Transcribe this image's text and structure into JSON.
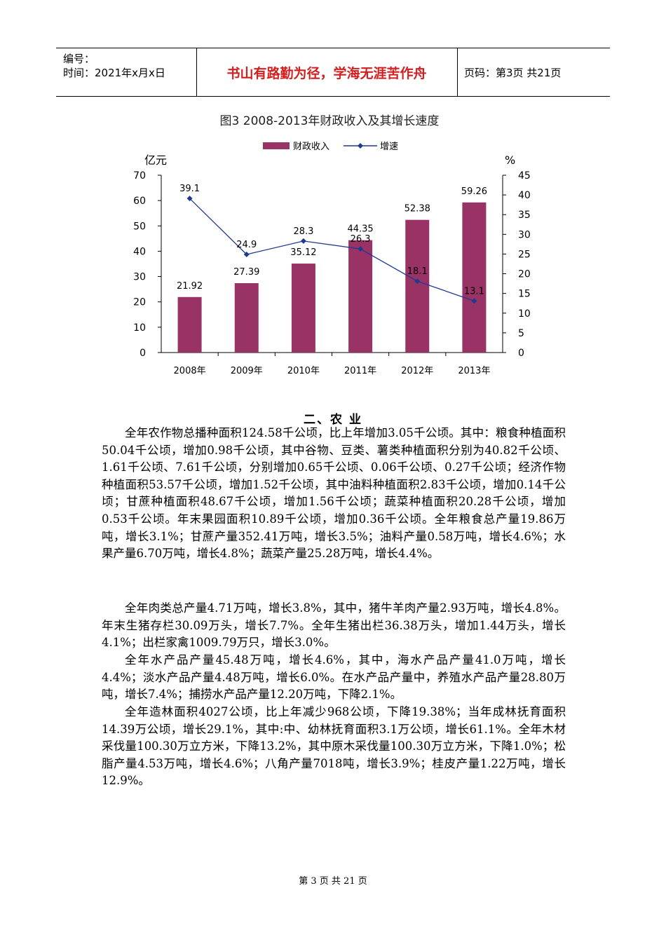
{
  "header": {
    "number_label": "编号：",
    "time_label": "时间：2021年x月x日",
    "motto": "书山有路勤为径，学海无涯苦作舟",
    "page_label": "页码：第3页  共21页"
  },
  "chart_data": {
    "type": "bar",
    "title": "图3   2008-2013年财政收入及其增长速度",
    "categories": [
      "2008年",
      "2009年",
      "2010年",
      "2011年",
      "2012年",
      "2013年"
    ],
    "series": [
      {
        "name": "财政收入",
        "type": "bar",
        "axis": "left",
        "color": "#993366",
        "values": [
          21.92,
          27.39,
          35.12,
          44.35,
          52.38,
          59.26
        ]
      },
      {
        "name": "增速",
        "type": "line",
        "axis": "right",
        "color": "#1f3a8f",
        "values": [
          39.1,
          24.9,
          28.3,
          26.3,
          18.1,
          13.1
        ]
      }
    ],
    "ylabel_left": "亿元",
    "ylabel_right": "%",
    "ylim_left": [
      0,
      70
    ],
    "ylim_right": [
      0,
      45
    ],
    "yticks_left": [
      "0",
      "10",
      "20",
      "30",
      "40",
      "50",
      "60",
      "70"
    ],
    "yticks_right": [
      "0",
      "5",
      "10",
      "15",
      "20",
      "25",
      "30",
      "35",
      "40",
      "45"
    ],
    "bar_labels": [
      "21.92",
      "27.39",
      "35.12",
      "44.35",
      "52.38",
      "59.26"
    ],
    "line_labels": [
      "39.1",
      "24.9",
      "28.3",
      "26.3",
      "18.1",
      "13.1"
    ],
    "legend_position": "top",
    "grid": false
  },
  "section": {
    "title": "二、农    业"
  },
  "paragraphs": [
    "全年农作物总播种面积124.58千公顷，比上年增加3.05千公顷。其中：粮食种植面积50.04千公顷，增加0.98千公顷，其中谷物、豆类、薯类种植面积分别为40.82千公顷、1.61千公顷、7.61千公顷，分别增加0.65千公顷、0.06千公顷、0.27千公顷；经济作物种植面积53.57千公顷，增加1.52千公顷，其中油料种植面积2.83千公顷，增加0.14千公顷；甘蔗种植面积48.67千公顷，增加1.56千公顷；蔬菜种植面积20.28千公顷，增加0.53千公顷。年末果园面积10.89千公顷，增加0.36千公顷。全年粮食总产量19.86万吨，增长3.1%；甘蔗产量352.41万吨，增长3.5%；油料产量0.58万吨，增长4.6%；水果产量6.70万吨，增长4.8%；蔬菜产量25.28万吨，增长4.4%。",
    "全年肉类总产量4.71万吨，增长3.8%，其中，猪牛羊肉产量2.93万吨，增长4.8%。年末生猪存栏30.09万头，增长7.7%。全年生猪出栏36.38万头，增加1.44万头，增长4.1%；出栏家禽1009.79万只，增长3.0%。",
    "全年水产品产量45.48万吨，增长4.6%，其中，海水产品产量41.0万吨，增长4.4%；淡水产品产量4.48万吨，增长6.0%。在水产品产量中，养殖水产品产量28.80万吨，增长7.4%；捕捞水产品产量12.20万吨，下降2.1%。",
    "全年造林面积4027公顷，比上年减少968公顷，下降19.38%；当年成林抚育面积14.39万公顷，增长29.1%，其中:中、幼林抚育面积3.1万公顷，增长61.1%。全年木材采伐量100.30万立方米，下降13.2%，其中原木采伐量100.30万立方米，下降1.0%；松脂产量4.53万吨，增长4.6%；八角产量7018吨，增长3.9%；桂皮产量1.22万吨，增长12.9%。"
  ],
  "footer": {
    "page_text": "第 3 页 共 21 页"
  }
}
